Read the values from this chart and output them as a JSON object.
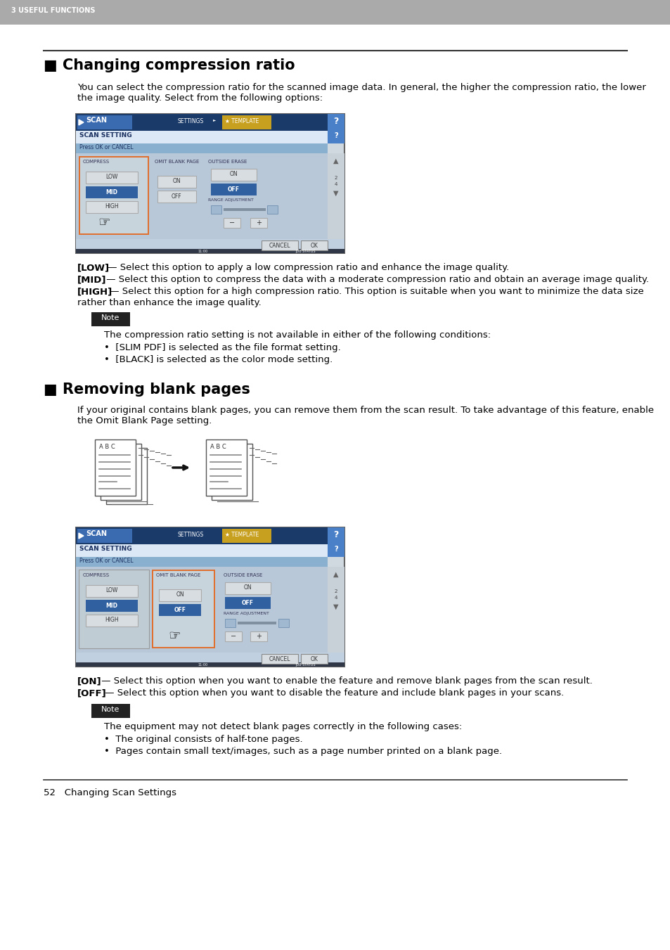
{
  "header_text": "3 USEFUL FUNCTIONS",
  "header_bg": "#aaaaaa",
  "header_text_color": "#ffffff",
  "page_bg": "#ffffff",
  "section1_title": "■ Changing compression ratio",
  "section1_intro": "You can select the compression ratio for the scanned image data. In general, the higher the compression ratio, the lower\nthe image quality. Select from the following options:",
  "note1_text": "The compression ratio setting is not available in either of the following conditions:",
  "note1_bullets": [
    "[SLIM PDF] is selected as the file format setting.",
    "[BLACK] is selected as the color mode setting."
  ],
  "section2_title": "■ Removing blank pages",
  "section2_intro": "If your original contains blank pages, you can remove them from the scan result. To take advantage of this feature, enable\nthe Omit Blank Page setting.",
  "note2_text": "The equipment may not detect blank pages correctly in the following cases:",
  "note2_bullets": [
    "The original consists of half-tone pages.",
    "Pages contain small text/images, such as a page number printed on a blank page."
  ],
  "footer_text": "52   Changing Scan Settings",
  "note_bg": "#222222",
  "note_label": "Note",
  "note_text_color": "#ffffff",
  "ui_blue": "#3060a0",
  "ui_blue_mid": "#4575b8",
  "ui_blue_dark": "#1a3a6a",
  "ui_blue_header": "#3a6ab0",
  "ui_gray_bg": "#c0c8d0",
  "ui_button_gray": "#d8dde2",
  "ui_highlight_orange": "#e07030",
  "ui_scrollbar": "#b8c4cc",
  "separator_color": "#000000",
  "text_color": "#000000",
  "body_font_size": 9.5,
  "title_font_size": 15,
  "header_font_size": 7
}
